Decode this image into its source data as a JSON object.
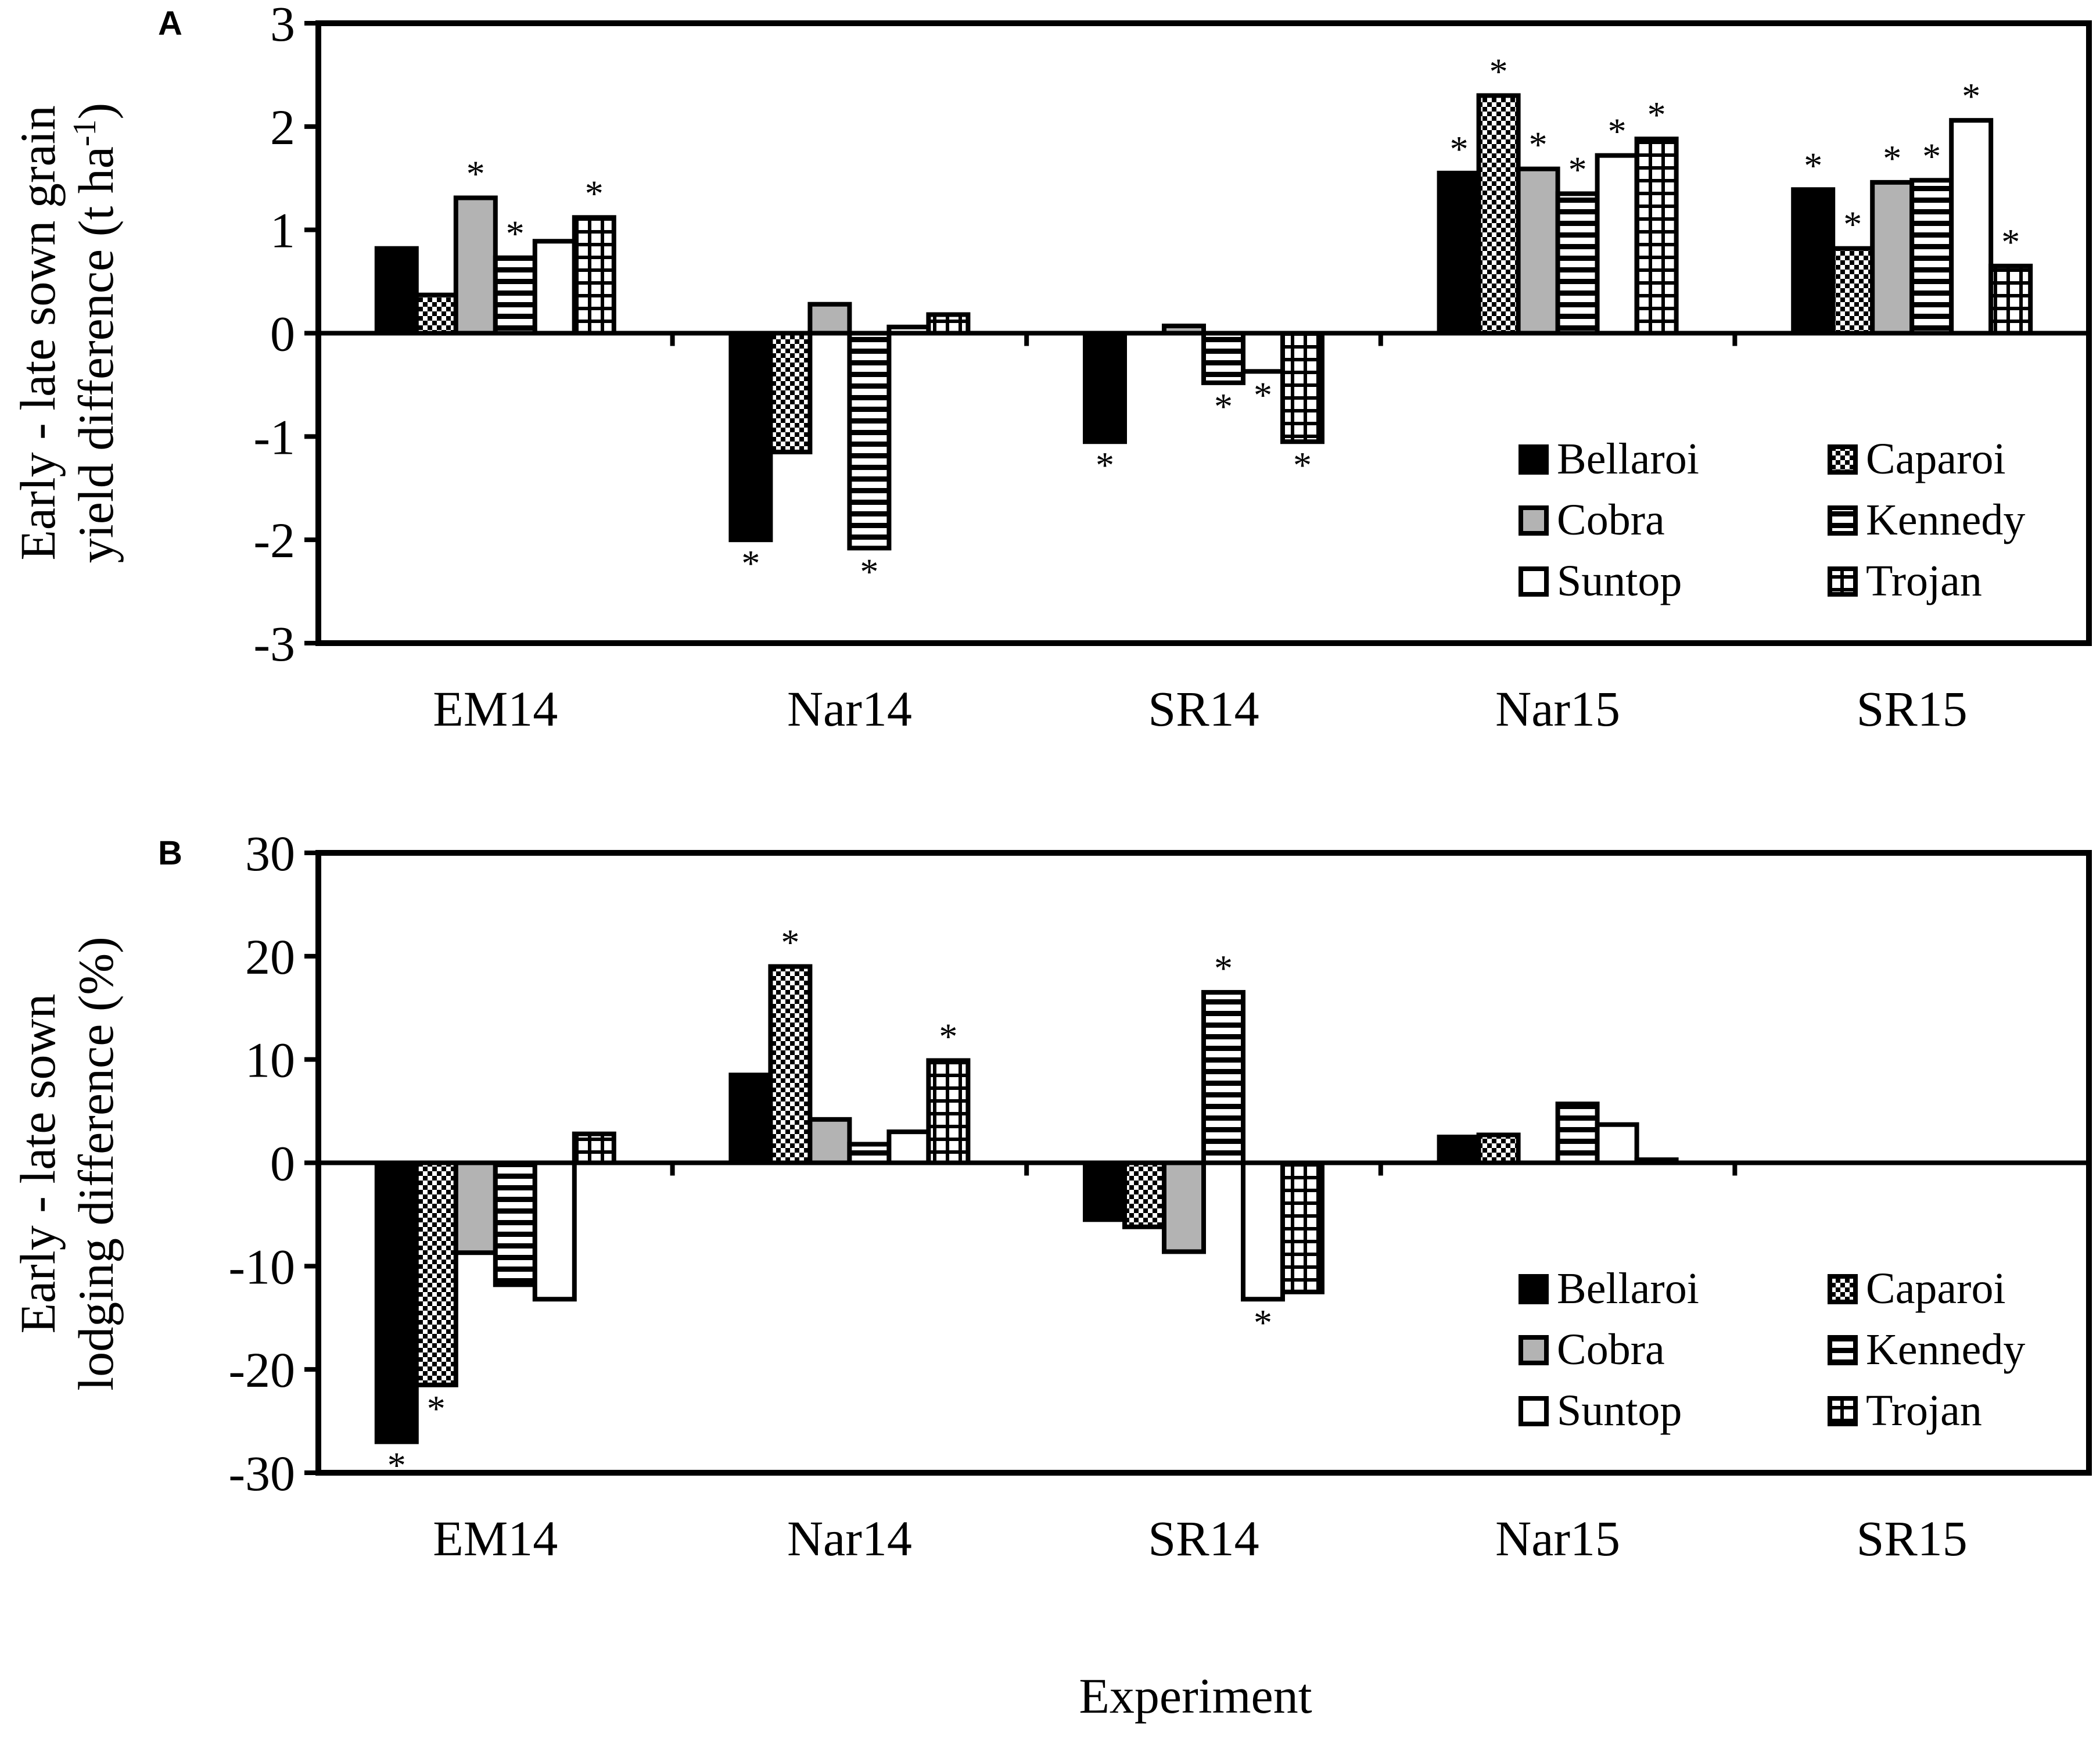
{
  "x_title": "Experiment",
  "star_symbol": "*",
  "legend": [
    {
      "name": "Bellaroi",
      "pattern": "solid-black"
    },
    {
      "name": "Caparoi",
      "pattern": "checker"
    },
    {
      "name": "Cobra",
      "pattern": "solid-gray"
    },
    {
      "name": "Kennedy",
      "pattern": "horizontal-lines"
    },
    {
      "name": "Suntop",
      "pattern": "white"
    },
    {
      "name": "Trojan",
      "pattern": "grid"
    }
  ],
  "colors": {
    "black": "#000000",
    "gray": "#b3b3b3",
    "white": "#ffffff"
  },
  "chart_data": [
    {
      "panel": "A",
      "type": "bar",
      "ylabel_line1": "Early - late sown grain",
      "ylabel_line2_main": "yield difference (t ha",
      "ylabel_line2_sup": "-1",
      "ylabel_line2_end": ")",
      "ylim": [
        -3,
        3
      ],
      "yticks": [
        3,
        2,
        1,
        0,
        -1,
        -2,
        -3
      ],
      "categories": [
        "EM14",
        "Nar14",
        "SR14",
        "Nar15",
        "SR15"
      ],
      "series": [
        {
          "name": "Bellaroi",
          "values": [
            0.82,
            -2.0,
            -1.05,
            1.55,
            1.39
          ],
          "significant": [
            false,
            true,
            true,
            true,
            true
          ]
        },
        {
          "name": "Caparoi",
          "values": [
            0.37,
            -1.15,
            null,
            2.3,
            0.82
          ],
          "significant": [
            false,
            false,
            false,
            true,
            true
          ]
        },
        {
          "name": "Cobra",
          "values": [
            1.31,
            0.28,
            0.07,
            1.59,
            1.46
          ],
          "significant": [
            true,
            false,
            false,
            true,
            true
          ]
        },
        {
          "name": "Kennedy",
          "values": [
            0.73,
            -2.08,
            -0.48,
            1.35,
            1.48
          ],
          "significant": [
            true,
            true,
            true,
            true,
            true
          ]
        },
        {
          "name": "Suntop",
          "values": [
            0.89,
            0.06,
            -0.37,
            1.72,
            2.06
          ],
          "significant": [
            false,
            false,
            true,
            true,
            true
          ]
        },
        {
          "name": "Trojan",
          "values": [
            1.12,
            0.18,
            -1.05,
            1.88,
            0.65
          ],
          "significant": [
            true,
            false,
            true,
            true,
            true
          ]
        }
      ]
    },
    {
      "panel": "B",
      "type": "bar",
      "ylabel_line1": "Early - late sown",
      "ylabel_line2_main": "lodging difference (%)",
      "ylabel_line2_sup": "",
      "ylabel_line2_end": "",
      "ylim": [
        -30,
        30
      ],
      "yticks": [
        30,
        20,
        10,
        0,
        -10,
        -20,
        -30
      ],
      "categories": [
        "EM14",
        "Nar14",
        "SR14",
        "Nar15",
        "SR15"
      ],
      "series": [
        {
          "name": "Bellaroi",
          "values": [
            -27,
            8.5,
            -5.5,
            2.5,
            null
          ],
          "significant": [
            true,
            false,
            false,
            false,
            false
          ]
        },
        {
          "name": "Caparoi",
          "values": [
            -21.5,
            19,
            -6.2,
            2.7,
            null
          ],
          "significant": [
            true,
            true,
            false,
            false,
            false
          ]
        },
        {
          "name": "Cobra",
          "values": [
            -8.7,
            4.2,
            -8.6,
            null,
            null
          ],
          "significant": [
            false,
            false,
            false,
            false,
            false
          ]
        },
        {
          "name": "Kennedy",
          "values": [
            -11.8,
            1.8,
            16.5,
            5.7,
            null
          ],
          "significant": [
            false,
            false,
            true,
            false,
            false
          ]
        },
        {
          "name": "Suntop",
          "values": [
            -13.2,
            3.0,
            -13.2,
            3.7,
            null
          ],
          "significant": [
            false,
            false,
            true,
            false,
            false
          ]
        },
        {
          "name": "Trojan",
          "values": [
            2.8,
            9.9,
            -12.5,
            0.3,
            null
          ],
          "significant": [
            false,
            true,
            false,
            false,
            false
          ]
        }
      ]
    }
  ]
}
